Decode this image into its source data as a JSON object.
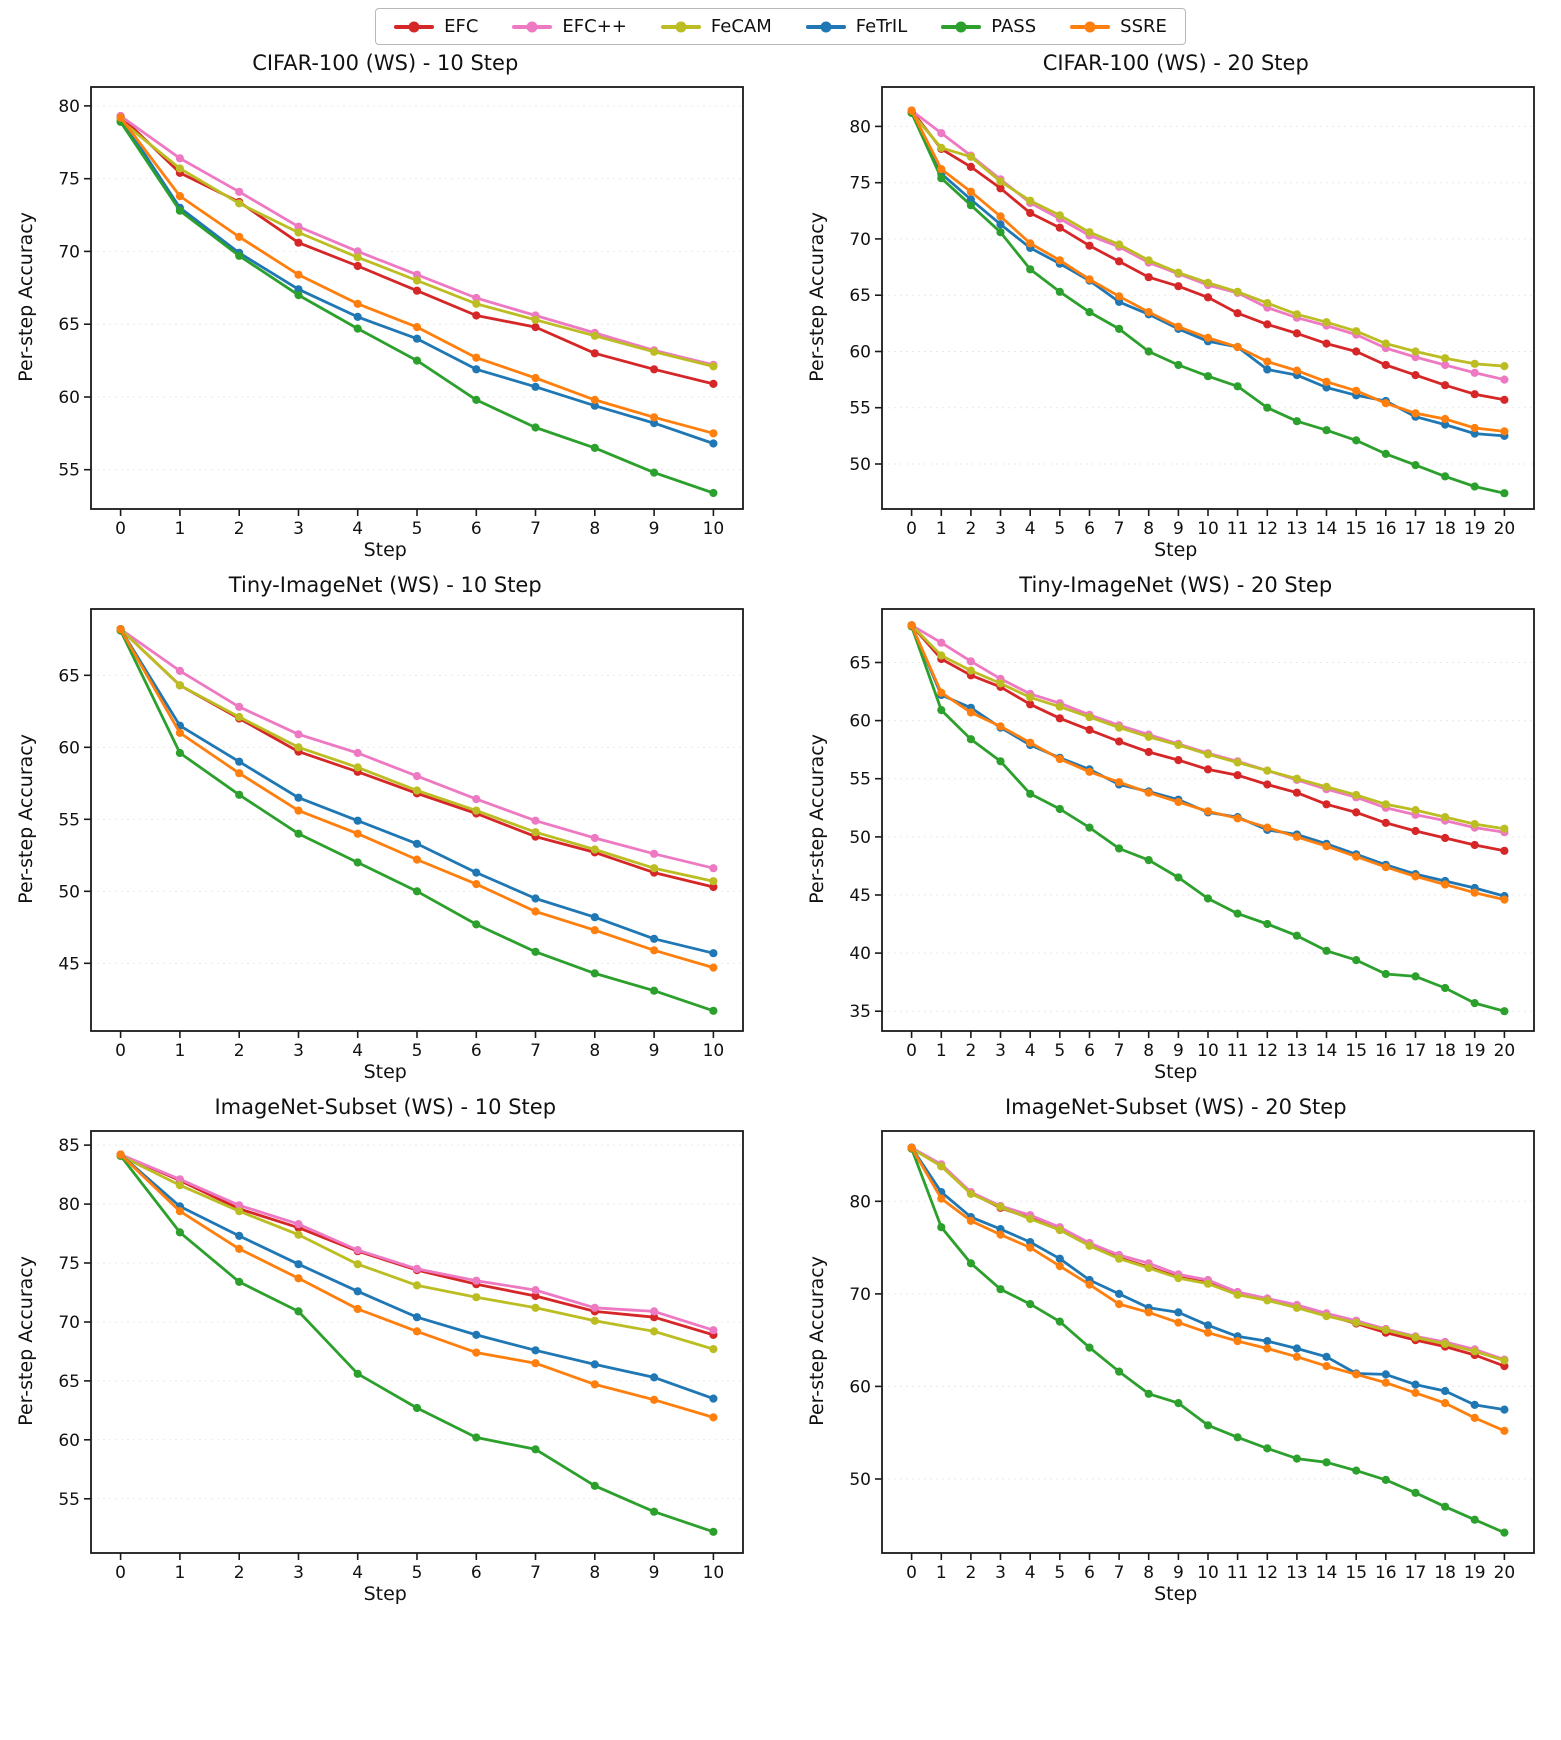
{
  "figure": {
    "ylabel": "Per-step Accuracy",
    "xlabel": "Step"
  },
  "legend": {
    "items": [
      {
        "label": "EFC",
        "color": "#d62728"
      },
      {
        "label": "EFC++",
        "color": "#ee79c3"
      },
      {
        "label": "FeCAM",
        "color": "#bcbd22"
      },
      {
        "label": "FeTrIL",
        "color": "#1f77b4"
      },
      {
        "label": "PASS",
        "color": "#2ca02c"
      },
      {
        "label": "SSRE",
        "color": "#ff7f0e"
      }
    ]
  },
  "chart_data": [
    {
      "type": "line",
      "title": "CIFAR-100 (WS) - 10 Step",
      "xlabel": "Step",
      "ylabel": "Per-step Accuracy",
      "x": [
        0,
        1,
        2,
        3,
        4,
        5,
        6,
        7,
        8,
        9,
        10
      ],
      "ylim": [
        52.3,
        81.3
      ],
      "yticks": [
        55,
        60,
        65,
        70,
        75,
        80
      ],
      "grid": true,
      "legend_position": "top-figure",
      "series": [
        {
          "name": "EFC",
          "color": "#d62728",
          "values": [
            79.3,
            75.4,
            73.4,
            70.6,
            69.0,
            67.3,
            65.6,
            64.8,
            63.0,
            61.9,
            60.9
          ]
        },
        {
          "name": "EFC++",
          "color": "#ee79c3",
          "values": [
            79.3,
            76.4,
            74.1,
            71.7,
            70.0,
            68.4,
            66.8,
            65.6,
            64.4,
            63.2,
            62.2
          ]
        },
        {
          "name": "FeCAM",
          "color": "#bcbd22",
          "values": [
            79.0,
            75.7,
            73.3,
            71.3,
            69.6,
            68.0,
            66.4,
            65.3,
            64.2,
            63.1,
            62.1
          ]
        },
        {
          "name": "FeTrIL",
          "color": "#1f77b4",
          "values": [
            79.2,
            73.0,
            69.9,
            67.4,
            65.5,
            64.0,
            61.9,
            60.7,
            59.4,
            58.2,
            56.8
          ]
        },
        {
          "name": "PASS",
          "color": "#2ca02c",
          "values": [
            78.9,
            72.8,
            69.7,
            67.0,
            64.7,
            62.5,
            59.8,
            57.9,
            56.5,
            54.8,
            53.4
          ]
        },
        {
          "name": "SSRE",
          "color": "#ff7f0e",
          "values": [
            79.2,
            73.8,
            71.0,
            68.4,
            66.4,
            64.8,
            62.7,
            61.3,
            59.8,
            58.6,
            57.5
          ]
        }
      ]
    },
    {
      "type": "line",
      "title": "CIFAR-100 (WS) - 20 Step",
      "xlabel": "Step",
      "ylabel": "Per-step Accuracy",
      "x": [
        0,
        1,
        2,
        3,
        4,
        5,
        6,
        7,
        8,
        9,
        10,
        11,
        12,
        13,
        14,
        15,
        16,
        17,
        18,
        19,
        20
      ],
      "ylim": [
        46.0,
        83.5
      ],
      "yticks": [
        50,
        55,
        60,
        65,
        70,
        75,
        80
      ],
      "grid": true,
      "series": [
        {
          "name": "EFC",
          "color": "#d62728",
          "values": [
            81.4,
            78.0,
            76.4,
            74.5,
            72.3,
            71.0,
            69.4,
            68.0,
            66.6,
            65.8,
            64.8,
            63.4,
            62.4,
            61.6,
            60.7,
            60.0,
            58.8,
            57.9,
            57.0,
            56.2,
            55.7
          ]
        },
        {
          "name": "EFC++",
          "color": "#ee79c3",
          "values": [
            81.4,
            79.4,
            77.4,
            75.3,
            73.2,
            71.8,
            70.3,
            69.3,
            67.9,
            66.9,
            65.9,
            65.2,
            63.9,
            63.0,
            62.3,
            61.5,
            60.3,
            59.5,
            58.8,
            58.1,
            57.5
          ]
        },
        {
          "name": "FeCAM",
          "color": "#bcbd22",
          "values": [
            81.2,
            78.1,
            77.3,
            75.1,
            73.4,
            72.1,
            70.6,
            69.5,
            68.1,
            67.0,
            66.1,
            65.3,
            64.3,
            63.3,
            62.6,
            61.8,
            60.7,
            60.0,
            59.4,
            58.9,
            58.7
          ]
        },
        {
          "name": "FeTrIL",
          "color": "#1f77b4",
          "values": [
            81.3,
            75.8,
            73.5,
            71.3,
            69.2,
            67.8,
            66.3,
            64.4,
            63.3,
            62.0,
            60.9,
            60.4,
            58.4,
            57.9,
            56.8,
            56.1,
            55.6,
            54.2,
            53.5,
            52.7,
            52.5
          ]
        },
        {
          "name": "PASS",
          "color": "#2ca02c",
          "values": [
            81.2,
            75.4,
            73.0,
            70.6,
            67.3,
            65.3,
            63.5,
            62.0,
            60.0,
            58.8,
            57.8,
            56.9,
            55.0,
            53.8,
            53.0,
            52.1,
            50.9,
            49.9,
            48.9,
            48.0,
            47.4
          ]
        },
        {
          "name": "SSRE",
          "color": "#ff7f0e",
          "values": [
            81.4,
            76.2,
            74.2,
            72.0,
            69.6,
            68.1,
            66.4,
            64.9,
            63.5,
            62.2,
            61.2,
            60.4,
            59.1,
            58.3,
            57.3,
            56.5,
            55.4,
            54.5,
            54.0,
            53.2,
            52.9
          ]
        }
      ]
    },
    {
      "type": "line",
      "title": "Tiny-ImageNet (WS) - 10 Step",
      "xlabel": "Step",
      "ylabel": "Per-step Accuracy",
      "x": [
        0,
        1,
        2,
        3,
        4,
        5,
        6,
        7,
        8,
        9,
        10
      ],
      "ylim": [
        40.3,
        69.6
      ],
      "yticks": [
        45,
        50,
        55,
        60,
        65
      ],
      "grid": true,
      "series": [
        {
          "name": "EFC",
          "color": "#d62728",
          "values": [
            68.2,
            64.3,
            62.0,
            59.7,
            58.3,
            56.8,
            55.4,
            53.8,
            52.7,
            51.3,
            50.3
          ]
        },
        {
          "name": "EFC++",
          "color": "#ee79c3",
          "values": [
            68.2,
            65.3,
            62.8,
            60.9,
            59.6,
            58.0,
            56.4,
            54.9,
            53.7,
            52.6,
            51.6
          ]
        },
        {
          "name": "FeCAM",
          "color": "#bcbd22",
          "values": [
            68.2,
            64.3,
            62.1,
            60.0,
            58.6,
            57.0,
            55.6,
            54.1,
            52.9,
            51.6,
            50.7
          ]
        },
        {
          "name": "FeTrIL",
          "color": "#1f77b4",
          "values": [
            68.2,
            61.5,
            59.0,
            56.5,
            54.9,
            53.3,
            51.3,
            49.5,
            48.2,
            46.7,
            45.7
          ]
        },
        {
          "name": "PASS",
          "color": "#2ca02c",
          "values": [
            68.1,
            59.6,
            56.7,
            54.0,
            52.0,
            50.0,
            47.7,
            45.8,
            44.3,
            43.1,
            41.7
          ]
        },
        {
          "name": "SSRE",
          "color": "#ff7f0e",
          "values": [
            68.2,
            61.0,
            58.2,
            55.6,
            54.0,
            52.2,
            50.5,
            48.6,
            47.3,
            45.9,
            44.7
          ]
        }
      ]
    },
    {
      "type": "line",
      "title": "Tiny-ImageNet (WS) - 20 Step",
      "xlabel": "Step",
      "ylabel": "Per-step Accuracy",
      "x": [
        0,
        1,
        2,
        3,
        4,
        5,
        6,
        7,
        8,
        9,
        10,
        11,
        12,
        13,
        14,
        15,
        16,
        17,
        18,
        19,
        20
      ],
      "ylim": [
        33.3,
        69.6
      ],
      "yticks": [
        35,
        40,
        45,
        50,
        55,
        60,
        65
      ],
      "grid": true,
      "series": [
        {
          "name": "EFC",
          "color": "#d62728",
          "values": [
            68.2,
            65.3,
            63.9,
            62.9,
            61.4,
            60.2,
            59.2,
            58.2,
            57.3,
            56.6,
            55.8,
            55.3,
            54.5,
            53.8,
            52.8,
            52.1,
            51.2,
            50.5,
            49.9,
            49.3,
            48.8
          ]
        },
        {
          "name": "EFC++",
          "color": "#ee79c3",
          "values": [
            68.2,
            66.7,
            65.1,
            63.6,
            62.3,
            61.5,
            60.5,
            59.6,
            58.8,
            58.0,
            57.2,
            56.5,
            55.7,
            54.9,
            54.1,
            53.4,
            52.5,
            51.9,
            51.4,
            50.8,
            50.4
          ]
        },
        {
          "name": "FeCAM",
          "color": "#bcbd22",
          "values": [
            68.2,
            65.6,
            64.3,
            63.2,
            62.0,
            61.2,
            60.3,
            59.4,
            58.6,
            57.9,
            57.1,
            56.4,
            55.7,
            55.0,
            54.3,
            53.6,
            52.8,
            52.3,
            51.7,
            51.1,
            50.7
          ]
        },
        {
          "name": "FeTrIL",
          "color": "#1f77b4",
          "values": [
            68.2,
            62.2,
            61.1,
            59.4,
            57.9,
            56.8,
            55.8,
            54.5,
            53.9,
            53.2,
            52.1,
            51.7,
            50.6,
            50.2,
            49.4,
            48.5,
            47.6,
            46.8,
            46.2,
            45.6,
            44.9
          ]
        },
        {
          "name": "PASS",
          "color": "#2ca02c",
          "values": [
            68.1,
            60.9,
            58.4,
            56.5,
            53.7,
            52.4,
            50.8,
            49.0,
            48.0,
            46.5,
            44.7,
            43.4,
            42.5,
            41.5,
            40.2,
            39.4,
            38.2,
            38.0,
            37.0,
            35.7,
            35.0
          ]
        },
        {
          "name": "SSRE",
          "color": "#ff7f0e",
          "values": [
            68.2,
            62.4,
            60.7,
            59.5,
            58.1,
            56.7,
            55.6,
            54.7,
            53.8,
            53.0,
            52.2,
            51.6,
            50.8,
            50.0,
            49.2,
            48.3,
            47.4,
            46.6,
            45.9,
            45.2,
            44.6
          ]
        }
      ]
    },
    {
      "type": "line",
      "title": "ImageNet-Subset (WS) - 10 Step",
      "xlabel": "Step",
      "ylabel": "Per-step Accuracy",
      "x": [
        0,
        1,
        2,
        3,
        4,
        5,
        6,
        7,
        8,
        9,
        10
      ],
      "ylim": [
        50.4,
        86.2
      ],
      "yticks": [
        55,
        60,
        65,
        70,
        75,
        80,
        85
      ],
      "grid": true,
      "series": [
        {
          "name": "EFC",
          "color": "#d62728",
          "values": [
            84.2,
            82.0,
            79.6,
            78.0,
            76.0,
            74.4,
            73.2,
            72.2,
            70.9,
            70.4,
            68.9
          ]
        },
        {
          "name": "EFC++",
          "color": "#ee79c3",
          "values": [
            84.2,
            82.1,
            79.9,
            78.3,
            76.1,
            74.5,
            73.5,
            72.7,
            71.2,
            70.9,
            69.3
          ]
        },
        {
          "name": "FeCAM",
          "color": "#bcbd22",
          "values": [
            84.1,
            81.6,
            79.4,
            77.4,
            74.9,
            73.1,
            72.1,
            71.2,
            70.1,
            69.2,
            67.7
          ]
        },
        {
          "name": "FeTrIL",
          "color": "#1f77b4",
          "values": [
            84.2,
            79.8,
            77.3,
            74.9,
            72.6,
            70.4,
            68.9,
            67.6,
            66.4,
            65.3,
            63.5
          ]
        },
        {
          "name": "PASS",
          "color": "#2ca02c",
          "values": [
            84.1,
            77.6,
            73.4,
            70.9,
            65.6,
            62.7,
            60.2,
            59.2,
            56.1,
            53.9,
            52.2
          ]
        },
        {
          "name": "SSRE",
          "color": "#ff7f0e",
          "values": [
            84.2,
            79.4,
            76.2,
            73.7,
            71.1,
            69.2,
            67.4,
            66.5,
            64.7,
            63.4,
            61.9
          ]
        }
      ]
    },
    {
      "type": "line",
      "title": "ImageNet-Subset (WS) - 20 Step",
      "xlabel": "Step",
      "ylabel": "Per-step Accuracy",
      "x": [
        0,
        1,
        2,
        3,
        4,
        5,
        6,
        7,
        8,
        9,
        10,
        11,
        12,
        13,
        14,
        15,
        16,
        17,
        18,
        19,
        20
      ],
      "ylim": [
        42.0,
        87.6
      ],
      "yticks": [
        50,
        60,
        70,
        80
      ],
      "grid": true,
      "series": [
        {
          "name": "EFC",
          "color": "#d62728",
          "values": [
            85.8,
            83.8,
            80.9,
            79.3,
            78.2,
            76.9,
            75.3,
            73.9,
            72.9,
            71.8,
            71.2,
            70.0,
            69.4,
            68.6,
            67.7,
            66.8,
            65.8,
            65.0,
            64.3,
            63.4,
            62.2
          ]
        },
        {
          "name": "EFC++",
          "color": "#ee79c3",
          "values": [
            85.8,
            84.0,
            81.0,
            79.5,
            78.5,
            77.2,
            75.5,
            74.2,
            73.3,
            72.1,
            71.5,
            70.2,
            69.5,
            68.8,
            67.9,
            67.1,
            66.2,
            65.4,
            64.8,
            64.0,
            62.9
          ]
        },
        {
          "name": "FeCAM",
          "color": "#bcbd22",
          "values": [
            85.7,
            83.8,
            80.8,
            79.4,
            78.1,
            76.9,
            75.2,
            73.8,
            72.8,
            71.7,
            71.1,
            69.9,
            69.3,
            68.5,
            67.6,
            66.9,
            66.1,
            65.3,
            64.6,
            63.8,
            62.8
          ]
        },
        {
          "name": "FeTrIL",
          "color": "#1f77b4",
          "values": [
            85.8,
            81.0,
            78.3,
            77.0,
            75.6,
            73.8,
            71.5,
            70.0,
            68.5,
            68.0,
            66.6,
            65.4,
            64.9,
            64.1,
            63.2,
            61.4,
            61.3,
            60.2,
            59.5,
            58.0,
            57.5
          ]
        },
        {
          "name": "PASS",
          "color": "#2ca02c",
          "values": [
            85.7,
            77.2,
            73.3,
            70.5,
            68.9,
            67.0,
            64.2,
            61.6,
            59.2,
            58.2,
            55.8,
            54.5,
            53.3,
            52.2,
            51.8,
            50.9,
            49.9,
            48.5,
            47.0,
            45.6,
            44.2
          ]
        },
        {
          "name": "SSRE",
          "color": "#ff7f0e",
          "values": [
            85.8,
            80.3,
            77.9,
            76.4,
            75.0,
            73.0,
            71.0,
            68.9,
            68.0,
            66.9,
            65.8,
            64.9,
            64.1,
            63.2,
            62.2,
            61.3,
            60.4,
            59.3,
            58.2,
            56.6,
            55.2
          ]
        }
      ]
    }
  ]
}
